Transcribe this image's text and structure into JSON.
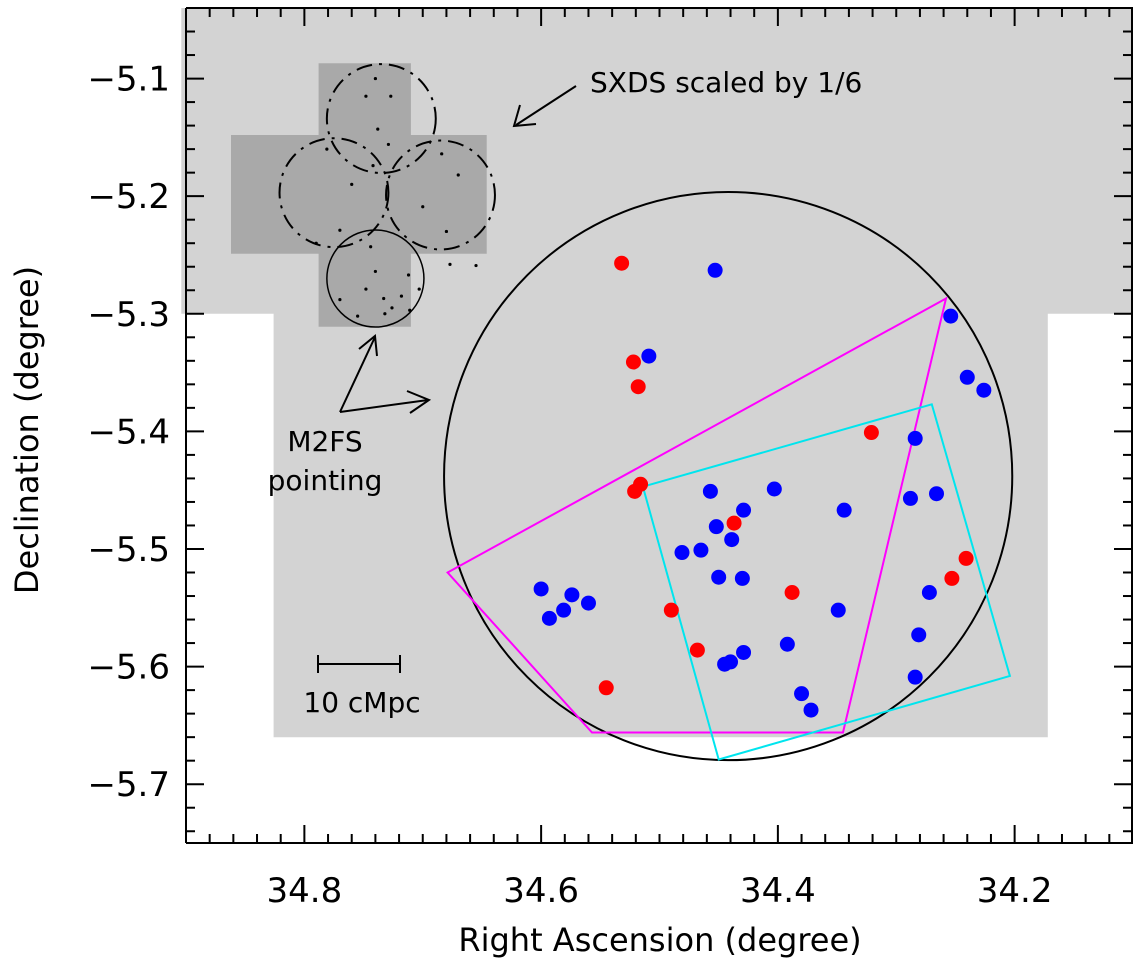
{
  "chart_data": {
    "type": "scatter",
    "title": "",
    "xlabel": "Right Ascension (degree)",
    "ylabel": "Declination (degree)",
    "xlim": [
      34.9,
      34.1
    ],
    "ylim": [
      -5.75,
      -5.04
    ],
    "x_reversed": true,
    "x_ticks": [
      34.8,
      34.6,
      34.4,
      34.2
    ],
    "x_tick_labels": [
      "34.8",
      "34.6",
      "34.4",
      "34.2"
    ],
    "y_ticks": [
      -5.1,
      -5.2,
      -5.3,
      -5.4,
      -5.5,
      -5.6,
      -5.7
    ],
    "y_tick_labels": [
      "−5.1",
      "−5.2",
      "−5.3",
      "−5.4",
      "−5.5",
      "−5.6",
      "−5.7"
    ],
    "grid": false,
    "legend": null,
    "colors": {
      "footprint": "#d3d3d3",
      "inset": "#a9a9a9",
      "red": "#ff0000",
      "blue": "#0000ff",
      "magenta": "#ff00ff",
      "cyan": "#00e5ee",
      "circle": "#000000"
    },
    "series": [
      {
        "color": "red",
        "points": [
          [
            34.532,
            -5.257
          ],
          [
            34.522,
            -5.341
          ],
          [
            34.518,
            -5.362
          ],
          [
            34.321,
            -5.401
          ],
          [
            34.516,
            -5.445
          ],
          [
            34.521,
            -5.451
          ],
          [
            34.437,
            -5.478
          ],
          [
            34.241,
            -5.508
          ],
          [
            34.253,
            -5.525
          ],
          [
            34.388,
            -5.537
          ],
          [
            34.49,
            -5.552
          ],
          [
            34.468,
            -5.586
          ],
          [
            34.545,
            -5.618
          ]
        ]
      },
      {
        "color": "blue",
        "points": [
          [
            34.453,
            -5.263
          ],
          [
            34.254,
            -5.302
          ],
          [
            34.509,
            -5.336
          ],
          [
            34.24,
            -5.354
          ],
          [
            34.226,
            -5.365
          ],
          [
            34.284,
            -5.406
          ],
          [
            34.457,
            -5.451
          ],
          [
            34.403,
            -5.449
          ],
          [
            34.288,
            -5.457
          ],
          [
            34.266,
            -5.453
          ],
          [
            34.344,
            -5.467
          ],
          [
            34.429,
            -5.467
          ],
          [
            34.452,
            -5.481
          ],
          [
            34.439,
            -5.492
          ],
          [
            34.465,
            -5.501
          ],
          [
            34.481,
            -5.503
          ],
          [
            34.45,
            -5.524
          ],
          [
            34.43,
            -5.525
          ],
          [
            34.6,
            -5.534
          ],
          [
            34.574,
            -5.539
          ],
          [
            34.272,
            -5.537
          ],
          [
            34.56,
            -5.546
          ],
          [
            34.581,
            -5.552
          ],
          [
            34.349,
            -5.552
          ],
          [
            34.593,
            -5.559
          ],
          [
            34.281,
            -5.573
          ],
          [
            34.392,
            -5.581
          ],
          [
            34.429,
            -5.588
          ],
          [
            34.44,
            -5.596
          ],
          [
            34.445,
            -5.598
          ],
          [
            34.284,
            -5.609
          ],
          [
            34.38,
            -5.623
          ],
          [
            34.372,
            -5.637
          ]
        ]
      }
    ],
    "footprint_polygon": [
      [
        34.904,
        -5.04
      ],
      [
        34.096,
        -5.04
      ],
      [
        34.096,
        -5.3
      ],
      [
        34.172,
        -5.3
      ],
      [
        34.172,
        -5.66
      ],
      [
        34.826,
        -5.66
      ],
      [
        34.826,
        -5.3
      ],
      [
        34.904,
        -5.3
      ]
    ],
    "m2fs_circle": {
      "center": [
        34.442,
        -5.438
      ],
      "radius_deg": 0.24
    },
    "magenta_polygon": [
      [
        34.258,
        -5.287
      ],
      [
        34.679,
        -5.52
      ],
      [
        34.557,
        -5.656
      ],
      [
        34.345,
        -5.656
      ]
    ],
    "cyan_polygon": [
      [
        34.27,
        -5.377
      ],
      [
        34.514,
        -5.447
      ],
      [
        34.45,
        -5.679
      ],
      [
        34.204,
        -5.608
      ]
    ],
    "inset": {
      "fill_polygon": [
        [
          34.788,
          -5.087
        ],
        [
          34.71,
          -5.087
        ],
        [
          34.71,
          -5.148
        ],
        [
          34.646,
          -5.148
        ],
        [
          34.646,
          -5.249
        ],
        [
          34.71,
          -5.249
        ],
        [
          34.71,
          -5.311
        ],
        [
          34.788,
          -5.311
        ],
        [
          34.788,
          -5.249
        ],
        [
          34.862,
          -5.249
        ],
        [
          34.862,
          -5.148
        ],
        [
          34.788,
          -5.148
        ]
      ],
      "dashed_circles": [
        {
          "center": [
            34.735,
            -5.134
          ],
          "radius_deg": 0.046
        },
        {
          "center": [
            34.775,
            -5.197
          ],
          "radius_deg": 0.046
        },
        {
          "center": [
            34.685,
            -5.199
          ],
          "radius_deg": 0.046
        }
      ],
      "solid_circle": {
        "center": [
          34.74,
          -5.27
        ],
        "radius_deg": 0.041
      },
      "dots": [
        [
          34.74,
          -5.1
        ],
        [
          34.748,
          -5.115
        ],
        [
          34.727,
          -5.115
        ],
        [
          34.738,
          -5.143
        ],
        [
          34.729,
          -5.156
        ],
        [
          34.742,
          -5.174
        ],
        [
          34.781,
          -5.16
        ],
        [
          34.76,
          -5.19
        ],
        [
          34.77,
          -5.229
        ],
        [
          34.79,
          -5.24
        ],
        [
          34.684,
          -5.164
        ],
        [
          34.67,
          -5.182
        ],
        [
          34.7,
          -5.209
        ],
        [
          34.68,
          -5.23
        ],
        [
          34.677,
          -5.258
        ],
        [
          34.655,
          -5.259
        ],
        [
          34.744,
          -5.243
        ],
        [
          34.748,
          -5.279
        ],
        [
          34.733,
          -5.287
        ],
        [
          34.718,
          -5.285
        ],
        [
          34.77,
          -5.288
        ],
        [
          34.726,
          -5.295
        ],
        [
          34.711,
          -5.297
        ],
        [
          34.732,
          -5.3
        ],
        [
          34.755,
          -5.302
        ],
        [
          34.74,
          -5.264
        ],
        [
          34.712,
          -5.267
        ],
        [
          34.703,
          -5.279
        ]
      ]
    },
    "annotations": {
      "sxds_label": "SXDS scaled by 1/6",
      "m2fs_label_line1": "M2FS",
      "m2fs_label_line2": "pointing",
      "scale_label": "10 cMpc"
    }
  }
}
